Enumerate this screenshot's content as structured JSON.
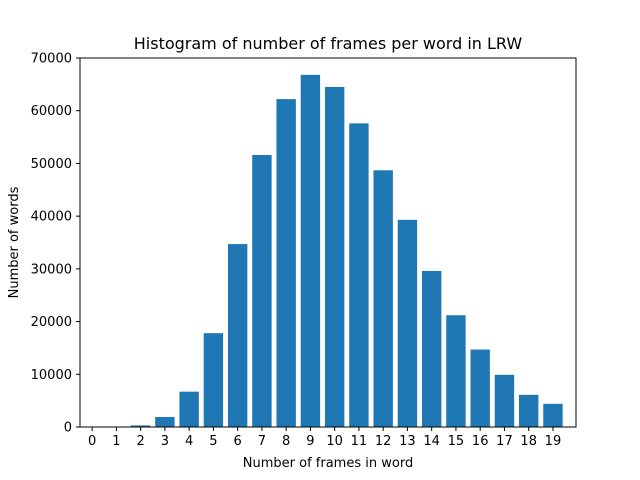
{
  "chart_data": {
    "type": "bar",
    "title": "Histogram of number of frames per word in LRW",
    "xlabel": "Number of frames in word",
    "ylabel": "Number of words",
    "categories": [
      "0",
      "1",
      "2",
      "3",
      "4",
      "5",
      "6",
      "7",
      "8",
      "9",
      "10",
      "11",
      "12",
      "13",
      "14",
      "15",
      "16",
      "17",
      "18",
      "19"
    ],
    "values": [
      0,
      0,
      300,
      1900,
      6700,
      17800,
      34700,
      51600,
      62200,
      66800,
      64500,
      57600,
      48700,
      39300,
      29600,
      21200,
      14700,
      9900,
      6100,
      4400
    ],
    "x_ticks": [
      "0",
      "1",
      "2",
      "3",
      "4",
      "5",
      "6",
      "7",
      "8",
      "9",
      "10",
      "11",
      "12",
      "13",
      "14",
      "15",
      "16",
      "17",
      "18",
      "19"
    ],
    "y_ticks": [
      "0",
      "10000",
      "20000",
      "30000",
      "40000",
      "50000",
      "60000",
      "70000"
    ],
    "ylim": [
      0,
      70000
    ],
    "xlim": [
      0,
      20
    ],
    "grid": false,
    "bar_color": "#1f77b4"
  }
}
